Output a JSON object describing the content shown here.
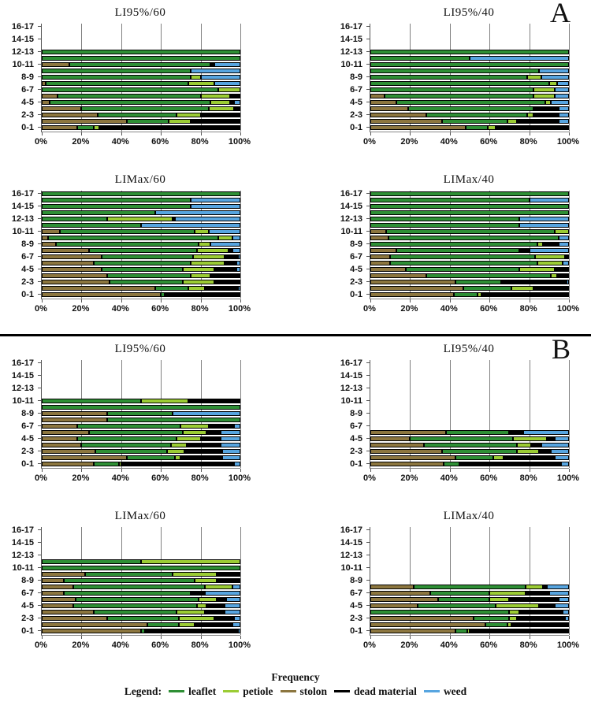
{
  "panels": [
    {
      "letter": "A"
    },
    {
      "letter": "B"
    }
  ],
  "footer": {
    "axis_title": "Frequency",
    "legend_label": "Legend:",
    "legend_items": [
      {
        "label": "leaflet",
        "color": "#2E8F35"
      },
      {
        "label": "petiole",
        "color": "#9BCC34"
      },
      {
        "label": "stolon",
        "color": "#8C763F"
      },
      {
        "label": "dead material",
        "color": "#000000"
      },
      {
        "label": "weed",
        "color": "#57A5E0"
      }
    ]
  },
  "chart_data": {
    "type": "bar",
    "subtype": "horizontal-stacked-100pct",
    "unit": "%",
    "xlabel": "Frequency",
    "x_ticks": [
      "0%",
      "20%",
      "40%",
      "60%",
      "80%",
      "100%"
    ],
    "xlim": [
      0,
      100
    ],
    "grid": "vertical-at-20pct-steps",
    "categories": [
      "0-1",
      "1-2",
      "2-3",
      "3-4",
      "4-5",
      "5-6",
      "6-7",
      "7-8",
      "8-9",
      "9-10",
      "10-11",
      "11-12",
      "12-13",
      "13-14",
      "14-15",
      "15-16",
      "16-17"
    ],
    "y_axis_labeled_categories": [
      "0-1",
      "2-3",
      "4-5",
      "6-7",
      "8-9",
      "10-11",
      "12-13",
      "14-15",
      "16-17"
    ],
    "series": [
      {
        "name": "stolon",
        "color": "#8C763F"
      },
      {
        "name": "leaflet",
        "color": "#2E8F35"
      },
      {
        "name": "petiole",
        "color": "#9BCC34"
      },
      {
        "name": "dead material",
        "color": "#000000"
      },
      {
        "name": "weed",
        "color": "#57A5E0"
      }
    ],
    "charts": [
      {
        "panel": "A",
        "title": "LI95%/60",
        "bars": {
          "0-1": [
            18,
            8,
            3,
            71,
            0
          ],
          "1-2": [
            43,
            21,
            11,
            25,
            0
          ],
          "2-3": [
            28,
            40,
            12,
            20,
            0
          ],
          "3-4": [
            20,
            64,
            13,
            3,
            0
          ],
          "4-5": [
            4,
            81,
            10,
            2,
            3
          ],
          "5-6": [
            8,
            72,
            15,
            5,
            0
          ],
          "6-7": [
            0,
            89,
            11,
            0,
            0
          ],
          "7-8": [
            2,
            72,
            13,
            0,
            13
          ],
          "8-9": [
            0,
            75,
            5,
            0,
            20
          ],
          "9-10": [
            0,
            75,
            0,
            0,
            25
          ],
          "10-11": [
            14,
            71,
            0,
            2,
            13
          ],
          "11-12": [
            0,
            100,
            0,
            0,
            0
          ],
          "12-13": [
            0,
            100,
            0,
            0,
            0
          ]
        }
      },
      {
        "panel": "A",
        "title": "LI95%/40",
        "bars": {
          "0-1": [
            48,
            11,
            4,
            37,
            0
          ],
          "1-2": [
            36,
            33,
            5,
            21,
            5
          ],
          "2-3": [
            28,
            51,
            3,
            13,
            5
          ],
          "3-4": [
            19,
            63,
            0,
            13,
            5
          ],
          "4-5": [
            13,
            75,
            3,
            0,
            9
          ],
          "5-6": [
            7,
            75,
            11,
            0,
            7
          ],
          "6-7": [
            0,
            82,
            11,
            0,
            7
          ],
          "7-8": [
            0,
            90,
            4,
            0,
            6
          ],
          "8-9": [
            0,
            79,
            7,
            0,
            14
          ],
          "9-10": [
            0,
            85,
            0,
            0,
            15
          ],
          "10-11": [
            0,
            100,
            0,
            0,
            0
          ],
          "11-12": [
            0,
            50,
            0,
            0,
            50
          ],
          "12-13": [
            0,
            100,
            0,
            0,
            0
          ]
        }
      },
      {
        "panel": "A",
        "title": "LIMax/60",
        "bars": {
          "0-1": [
            60,
            2,
            0,
            38,
            0
          ],
          "1-2": [
            57,
            17,
            8,
            17,
            1
          ],
          "2-3": [
            34,
            37,
            16,
            13,
            0
          ],
          "3-4": [
            33,
            42,
            10,
            15,
            0
          ],
          "4-5": [
            30,
            41,
            16,
            11,
            2
          ],
          "5-6": [
            26,
            49,
            17,
            6,
            2
          ],
          "6-7": [
            30,
            46,
            16,
            7,
            1
          ],
          "7-8": [
            24,
            54,
            16,
            2,
            4
          ],
          "8-9": [
            7,
            72,
            6,
            0,
            15
          ],
          "9-10": [
            3,
            86,
            7,
            0,
            4
          ],
          "10-11": [
            9,
            68,
            7,
            0,
            16
          ],
          "11-12": [
            0,
            50,
            0,
            0,
            50
          ],
          "12-13": [
            0,
            33,
            33,
            1,
            33
          ],
          "13-14": [
            0,
            57,
            0,
            0,
            43
          ],
          "14-15": [
            0,
            75,
            0,
            0,
            25
          ],
          "15-16": [
            0,
            75,
            0,
            0,
            25
          ],
          "16-17": [
            0,
            100,
            0,
            0,
            0
          ]
        }
      },
      {
        "panel": "A",
        "title": "LIMax/40",
        "bars": {
          "0-1": [
            42,
            12,
            2,
            44,
            0
          ],
          "1-2": [
            47,
            24,
            11,
            18,
            0
          ],
          "2-3": [
            43,
            23,
            0,
            33,
            1
          ],
          "3-4": [
            28,
            63,
            3,
            6,
            0
          ],
          "4-5": [
            18,
            57,
            18,
            7,
            0
          ],
          "5-6": [
            10,
            74,
            13,
            0,
            3
          ],
          "6-7": [
            10,
            73,
            15,
            2,
            0
          ],
          "7-8": [
            13,
            62,
            0,
            5,
            20
          ],
          "8-9": [
            0,
            84,
            3,
            8,
            5
          ],
          "9-10": [
            9,
            86,
            0,
            0,
            5
          ],
          "10-11": [
            8,
            85,
            7,
            0,
            0
          ],
          "11-12": [
            0,
            75,
            0,
            0,
            25
          ],
          "12-13": [
            0,
            75,
            0,
            0,
            25
          ],
          "13-14": [
            0,
            100,
            0,
            0,
            0
          ],
          "14-15": [
            0,
            100,
            0,
            0,
            0
          ],
          "15-16": [
            0,
            80,
            0,
            0,
            20
          ],
          "16-17": [
            0,
            100,
            0,
            0,
            0
          ]
        }
      },
      {
        "panel": "B",
        "title": "LI95%/60",
        "bars": {
          "0-1": [
            26,
            13,
            1,
            57,
            3
          ],
          "1-2": [
            43,
            24,
            3,
            21,
            9
          ],
          "2-3": [
            27,
            36,
            9,
            19,
            9
          ],
          "3-4": [
            20,
            45,
            8,
            17,
            10
          ],
          "4-5": [
            18,
            50,
            12,
            10,
            10
          ],
          "5-6": [
            24,
            47,
            12,
            7,
            10
          ],
          "6-7": [
            18,
            52,
            14,
            13,
            3
          ],
          "7-8": [
            33,
            67,
            0,
            0,
            0
          ],
          "8-9": [
            33,
            33,
            0,
            0,
            34
          ],
          "9-10": [
            0,
            100,
            0,
            0,
            0
          ],
          "10-11": [
            0,
            50,
            24,
            26,
            0
          ]
        }
      },
      {
        "panel": "B",
        "title": "LI95%/40",
        "bars": {
          "0-1": [
            37,
            8,
            0,
            51,
            4
          ],
          "1-2": [
            43,
            19,
            5,
            26,
            7
          ],
          "2-3": [
            36,
            38,
            11,
            6,
            9
          ],
          "3-4": [
            27,
            47,
            7,
            5,
            14
          ],
          "4-5": [
            20,
            52,
            17,
            4,
            7
          ],
          "5-6": [
            38,
            32,
            0,
            7,
            23
          ]
        }
      },
      {
        "panel": "B",
        "title": "LIMax/60",
        "bars": {
          "0-1": [
            50,
            2,
            0,
            47,
            1
          ],
          "1-2": [
            53,
            16,
            8,
            19,
            4
          ],
          "2-3": [
            33,
            36,
            18,
            10,
            3
          ],
          "3-4": [
            26,
            42,
            14,
            10,
            8
          ],
          "4-5": [
            16,
            62,
            5,
            9,
            8
          ],
          "5-6": [
            17,
            62,
            9,
            5,
            7
          ],
          "6-7": [
            11,
            64,
            0,
            7,
            18
          ],
          "7-8": [
            16,
            66,
            14,
            0,
            4
          ],
          "8-9": [
            11,
            66,
            11,
            12,
            0
          ],
          "9-10": [
            22,
            44,
            22,
            12,
            0
          ],
          "10-11": [
            0,
            100,
            0,
            0,
            0
          ],
          "11-12": [
            0,
            50,
            50,
            0,
            0
          ]
        }
      },
      {
        "panel": "B",
        "title": "LIMax/40",
        "bars": {
          "0-1": [
            43,
            6,
            1,
            50,
            0
          ],
          "1-2": [
            58,
            11,
            2,
            29,
            0
          ],
          "2-3": [
            52,
            18,
            4,
            24,
            2
          ],
          "3-4": [
            0,
            70,
            5,
            22,
            3
          ],
          "4-5": [
            24,
            39,
            22,
            8,
            7
          ],
          "5-6": [
            34,
            26,
            10,
            25,
            5
          ],
          "6-7": [
            30,
            30,
            18,
            12,
            10
          ],
          "7-8": [
            22,
            56,
            9,
            2,
            11
          ]
        }
      }
    ]
  }
}
